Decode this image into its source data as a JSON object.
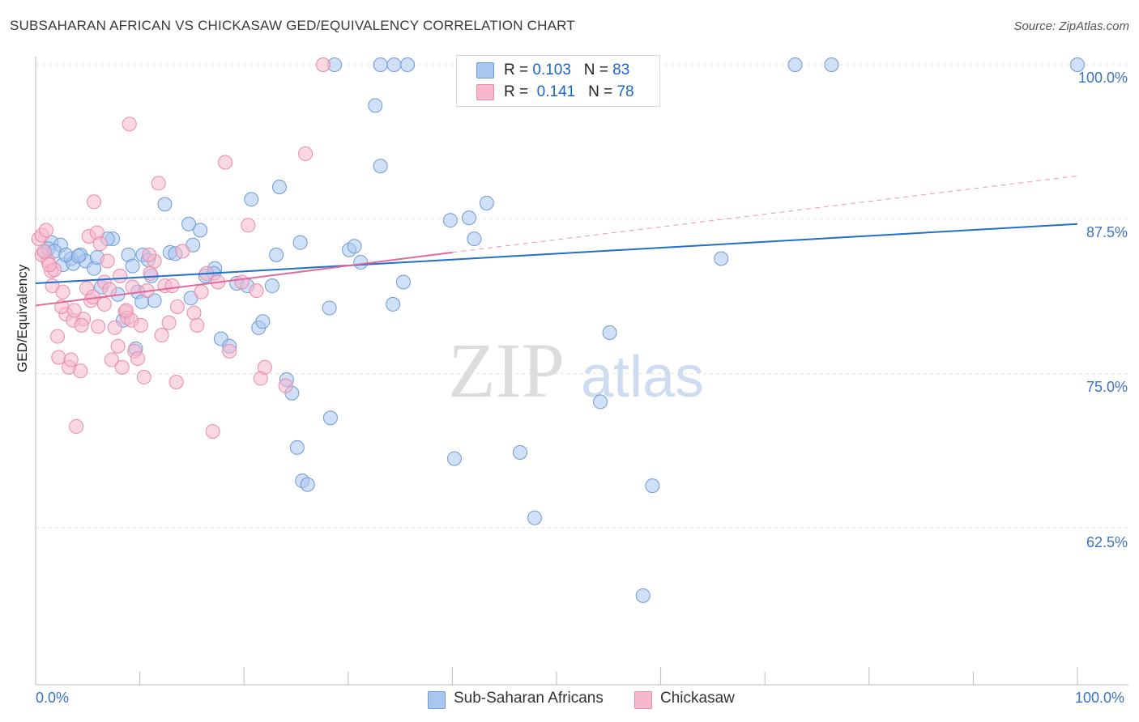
{
  "title": "SUBSAHARAN AFRICAN VS CHICKASAW GED/EQUIVALENCY CORRELATION CHART",
  "source": "Source: ZipAtlas.com",
  "legend_top": {
    "rows": [
      {
        "r_label": "R =",
        "r_value": "0.103",
        "n_label": "N =",
        "n_value": "83"
      },
      {
        "r_label": "R =",
        "r_value": "0.141",
        "n_label": "N =",
        "n_value": "78"
      }
    ]
  },
  "watermark": {
    "zip": "ZIP",
    "atlas": "atlas"
  },
  "colors": {
    "blue_fill": "#a9c6ef",
    "blue_stroke": "#6d9ad6",
    "blue_line": "#1f6fcf",
    "pink_fill": "#f6b8cc",
    "pink_stroke": "#e98aa8",
    "pink_line": "#e2679a",
    "tick_text": "#3b73c4",
    "grid": "#e2e2e2"
  },
  "chart_data": {
    "type": "scatter",
    "title": "SUBSAHARAN AFRICAN VS CHICKASAW GED/EQUIVALENCY CORRELATION CHART",
    "xlabel": "",
    "ylabel": "GED/Equivalency",
    "x_tick_labels": [
      "0.0%",
      "100.0%"
    ],
    "y_tick_labels": [
      "100.0%",
      "87.5%",
      "75.0%",
      "62.5%"
    ],
    "y_ticks": [
      100.0,
      87.5,
      75.0,
      62.5
    ],
    "xlim": [
      0,
      100
    ],
    "ylim": [
      51.5,
      101.0
    ],
    "grid": true,
    "legend_position": "bottom",
    "series": [
      {
        "name": "Sub-Saharan Africans",
        "color": "#a9c6ef",
        "trend": {
          "x": [
            0,
            100
          ],
          "y": [
            82.3,
            87.1
          ],
          "dashed_extension": false
        },
        "points": [
          [
            1.5,
            85.6
          ],
          [
            2.4,
            85.4
          ],
          [
            0.9,
            84.8
          ],
          [
            1.2,
            85.1
          ],
          [
            1.8,
            84.9
          ],
          [
            2.6,
            83.8
          ],
          [
            3.4,
            84.3
          ],
          [
            3.6,
            83.9
          ],
          [
            4.3,
            84.6
          ],
          [
            4.8,
            84.1
          ],
          [
            5.6,
            83.5
          ],
          [
            5.9,
            84.4
          ],
          [
            7.4,
            85.9
          ],
          [
            6.3,
            82.0
          ],
          [
            7.9,
            81.4
          ],
          [
            8.4,
            79.3
          ],
          [
            8.9,
            84.6
          ],
          [
            9.3,
            83.7
          ],
          [
            9.8,
            81.6
          ],
          [
            10.3,
            84.6
          ],
          [
            10.8,
            84.2
          ],
          [
            11.1,
            82.9
          ],
          [
            11.4,
            80.9
          ],
          [
            12.9,
            84.8
          ],
          [
            13.4,
            84.7
          ],
          [
            14.7,
            87.1
          ],
          [
            14.9,
            81.1
          ],
          [
            15.8,
            86.6
          ],
          [
            16.3,
            82.9
          ],
          [
            17.2,
            83.5
          ],
          [
            17.8,
            77.8
          ],
          [
            18.6,
            77.2
          ],
          [
            19.3,
            82.3
          ],
          [
            20.3,
            82.1
          ],
          [
            20.7,
            89.1
          ],
          [
            21.4,
            78.7
          ],
          [
            21.8,
            79.2
          ],
          [
            22.7,
            82.1
          ],
          [
            23.1,
            84.6
          ],
          [
            23.4,
            90.1
          ],
          [
            24.1,
            74.5
          ],
          [
            24.6,
            73.4
          ],
          [
            25.1,
            69.0
          ],
          [
            25.4,
            85.6
          ],
          [
            25.6,
            66.3
          ],
          [
            26.1,
            66.0
          ],
          [
            28.2,
            80.3
          ],
          [
            28.3,
            71.4
          ],
          [
            28.7,
            100.0
          ],
          [
            30.1,
            85.0
          ],
          [
            30.6,
            85.3
          ],
          [
            31.2,
            84.0
          ],
          [
            32.6,
            96.7
          ],
          [
            33.1,
            91.8
          ],
          [
            33.1,
            100.0
          ],
          [
            34.3,
            80.6
          ],
          [
            34.4,
            100.0
          ],
          [
            35.3,
            82.4
          ],
          [
            35.7,
            100.0
          ],
          [
            39.8,
            87.4
          ],
          [
            40.2,
            68.1
          ],
          [
            41.6,
            87.6
          ],
          [
            42.1,
            85.9
          ],
          [
            43.3,
            88.8
          ],
          [
            46.5,
            68.6
          ],
          [
            47.9,
            63.3
          ],
          [
            50.6,
            100.0
          ],
          [
            54.2,
            72.7
          ],
          [
            55.1,
            78.3
          ],
          [
            58.3,
            57.0
          ],
          [
            59.2,
            65.9
          ],
          [
            65.8,
            84.3
          ],
          [
            72.9,
            100.0
          ],
          [
            76.4,
            100.0
          ],
          [
            100.0,
            100.0
          ],
          [
            12.4,
            88.7
          ],
          [
            6.9,
            85.9
          ],
          [
            2.9,
            84.6
          ],
          [
            4.1,
            84.5
          ],
          [
            10.2,
            80.8
          ],
          [
            15.1,
            85.4
          ],
          [
            17.1,
            83.1
          ],
          [
            9.6,
            77.0
          ]
        ]
      },
      {
        "name": "Chickasaw",
        "color": "#f6b8cc",
        "trend": {
          "x": [
            0,
            40
          ],
          "y": [
            80.5,
            84.8
          ],
          "dashed_extension": true,
          "dash_to": [
            100,
            91.0
          ]
        },
        "points": [
          [
            0.3,
            85.9
          ],
          [
            0.6,
            86.2
          ],
          [
            0.6,
            84.6
          ],
          [
            1.0,
            86.6
          ],
          [
            1.2,
            84.1
          ],
          [
            1.5,
            83.3
          ],
          [
            1.6,
            82.1
          ],
          [
            1.8,
            83.4
          ],
          [
            2.1,
            78.0
          ],
          [
            2.2,
            76.3
          ],
          [
            2.6,
            81.6
          ],
          [
            2.9,
            79.8
          ],
          [
            3.2,
            75.5
          ],
          [
            3.4,
            76.1
          ],
          [
            3.6,
            79.3
          ],
          [
            3.9,
            70.7
          ],
          [
            4.3,
            75.2
          ],
          [
            4.6,
            79.4
          ],
          [
            4.9,
            81.9
          ],
          [
            5.1,
            86.1
          ],
          [
            5.3,
            80.9
          ],
          [
            5.6,
            88.9
          ],
          [
            5.9,
            86.4
          ],
          [
            6.2,
            85.5
          ],
          [
            6.6,
            82.4
          ],
          [
            6.9,
            84.1
          ],
          [
            7.3,
            76.1
          ],
          [
            7.6,
            78.7
          ],
          [
            7.9,
            77.2
          ],
          [
            8.1,
            82.9
          ],
          [
            8.3,
            75.5
          ],
          [
            8.6,
            80.0
          ],
          [
            8.8,
            79.5
          ],
          [
            9.0,
            95.2
          ],
          [
            9.2,
            79.3
          ],
          [
            9.5,
            76.8
          ],
          [
            9.8,
            76.2
          ],
          [
            10.1,
            78.9
          ],
          [
            10.4,
            74.7
          ],
          [
            10.7,
            81.7
          ],
          [
            11.0,
            83.1
          ],
          [
            11.4,
            84.1
          ],
          [
            11.8,
            90.4
          ],
          [
            12.1,
            78.1
          ],
          [
            12.4,
            82.1
          ],
          [
            12.8,
            79.1
          ],
          [
            13.1,
            82.1
          ],
          [
            13.5,
            74.3
          ],
          [
            13.6,
            80.4
          ],
          [
            14.1,
            84.9
          ],
          [
            15.2,
            79.9
          ],
          [
            15.5,
            78.9
          ],
          [
            15.9,
            81.6
          ],
          [
            16.4,
            83.1
          ],
          [
            17.0,
            70.3
          ],
          [
            17.5,
            82.4
          ],
          [
            18.2,
            92.1
          ],
          [
            18.6,
            76.8
          ],
          [
            19.8,
            82.4
          ],
          [
            20.4,
            87.0
          ],
          [
            21.2,
            81.7
          ],
          [
            21.6,
            74.6
          ],
          [
            22.0,
            75.5
          ],
          [
            24.0,
            74.0
          ],
          [
            25.9,
            92.8
          ],
          [
            27.6,
            100.0
          ],
          [
            0.8,
            84.9
          ],
          [
            1.3,
            83.8
          ],
          [
            2.5,
            80.4
          ],
          [
            3.7,
            80.1
          ],
          [
            4.4,
            78.9
          ],
          [
            5.5,
            81.2
          ],
          [
            6.0,
            78.8
          ],
          [
            6.6,
            80.6
          ],
          [
            7.1,
            81.8
          ],
          [
            8.7,
            80.1
          ],
          [
            9.3,
            82.0
          ],
          [
            10.9,
            84.6
          ]
        ]
      }
    ]
  }
}
